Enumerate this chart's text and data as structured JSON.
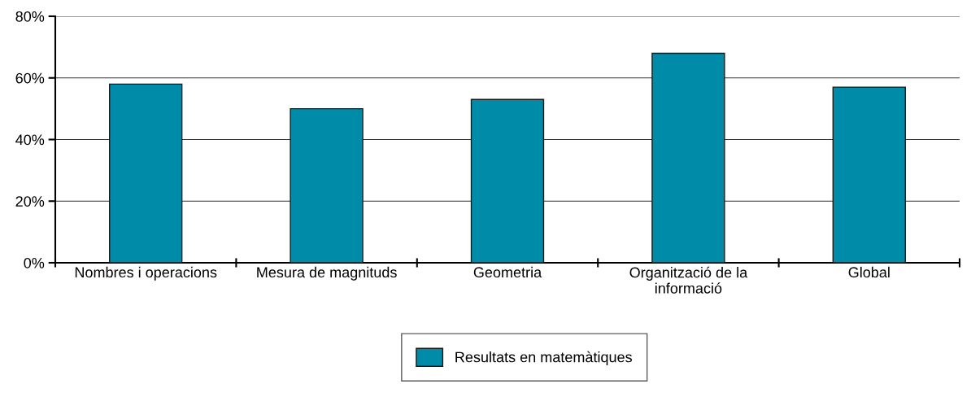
{
  "chart_data": {
    "type": "bar",
    "categories": [
      "Nombres i operacions",
      "Mesura de magnituds",
      "Geometria",
      "Organització de la\ninformació",
      "Global"
    ],
    "series": [
      {
        "name": "Resultats en matemàtiques",
        "color": "#008ca8",
        "values": [
          58,
          50,
          53,
          68,
          57
        ]
      }
    ],
    "ylim": [
      0,
      80
    ],
    "yticks": [
      {
        "value": 0,
        "label": "0%"
      },
      {
        "value": 20,
        "label": "20%"
      },
      {
        "value": 40,
        "label": "40%"
      },
      {
        "value": 60,
        "label": "60%"
      },
      {
        "value": 80,
        "label": "80%"
      }
    ],
    "grid": "y",
    "legend": "bottom"
  }
}
